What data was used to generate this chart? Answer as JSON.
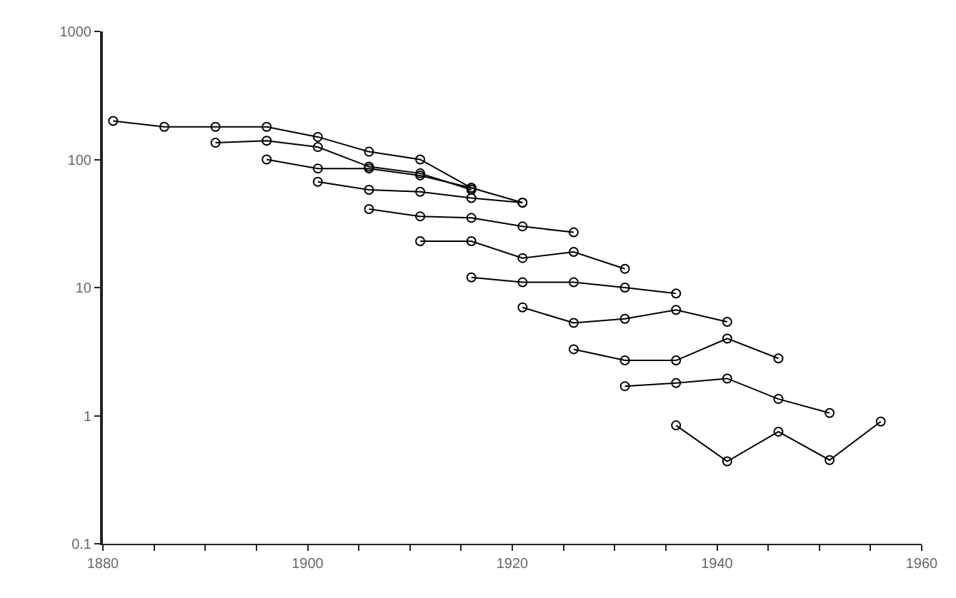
{
  "chart_data": {
    "type": "line",
    "log": "y",
    "marker": "circle",
    "line_style": "solid",
    "xlim": [
      1880,
      1960
    ],
    "xticks": [
      1880,
      {
        "value": 1885,
        "label": null
      },
      {
        "value": 1890,
        "label": null
      },
      {
        "value": 1895,
        "label": null
      },
      1900,
      {
        "value": 1905,
        "label": null
      },
      {
        "value": 1910,
        "label": null
      },
      {
        "value": 1915,
        "label": null
      },
      1920,
      {
        "value": 1925,
        "label": null
      },
      {
        "value": 1930,
        "label": null
      },
      {
        "value": 1935,
        "label": null
      },
      1940,
      {
        "value": 1945,
        "label": null
      },
      {
        "value": 1950,
        "label": null
      },
      {
        "value": 1955,
        "label": null
      },
      1960
    ],
    "ylim": [
      0.1,
      1000
    ],
    "yticks": [
      0.1,
      1,
      10,
      100,
      1000
    ],
    "series": [
      {
        "color": "#000000",
        "x": [
          1881,
          1886,
          1891,
          1896,
          1901,
          1906,
          1911,
          1916,
          1921
        ],
        "values": [
          200,
          180,
          180,
          180,
          150,
          115,
          100,
          60,
          46
        ]
      },
      {
        "color": "#000000",
        "x": [
          1891,
          1896,
          1901,
          1906,
          1911,
          1916
        ],
        "values": [
          135,
          140,
          125,
          88,
          78,
          58
        ]
      },
      {
        "color": "#000000",
        "x": [
          1896,
          1901,
          1906,
          1911,
          1916
        ],
        "values": [
          100,
          85,
          85,
          75,
          60
        ]
      },
      {
        "color": "#000000",
        "x": [
          1901,
          1906,
          1911,
          1916,
          1921
        ],
        "values": [
          67,
          58,
          56,
          50,
          46
        ]
      },
      {
        "color": "#000000",
        "x": [
          1906,
          1911,
          1916,
          1921,
          1926
        ],
        "values": [
          41,
          36,
          35,
          30,
          27
        ]
      },
      {
        "color": "#000000",
        "x": [
          1911,
          1916,
          1921,
          1926,
          1931
        ],
        "values": [
          23,
          23,
          17,
          19,
          14
        ]
      },
      {
        "color": "#000000",
        "x": [
          1916,
          1921,
          1926,
          1931,
          1936
        ],
        "values": [
          12,
          11,
          11,
          10,
          9
        ]
      },
      {
        "color": "#000000",
        "x": [
          1921,
          1926,
          1931,
          1936,
          1941
        ],
        "values": [
          7,
          5.3,
          5.7,
          6.7,
          5.4
        ]
      },
      {
        "color": "#000000",
        "x": [
          1926,
          1931,
          1936,
          1941,
          1946
        ],
        "values": [
          3.3,
          2.7,
          2.7,
          4,
          2.8
        ]
      },
      {
        "color": "#000000",
        "x": [
          1931,
          1936,
          1941,
          1946,
          1951
        ],
        "values": [
          1.7,
          1.8,
          1.95,
          1.35,
          1.05
        ]
      },
      {
        "color": "#000000",
        "x": [
          1936,
          1941,
          1946,
          1951,
          1956
        ],
        "values": [
          0.84,
          0.44,
          0.75,
          0.45,
          0.9
        ]
      }
    ]
  }
}
